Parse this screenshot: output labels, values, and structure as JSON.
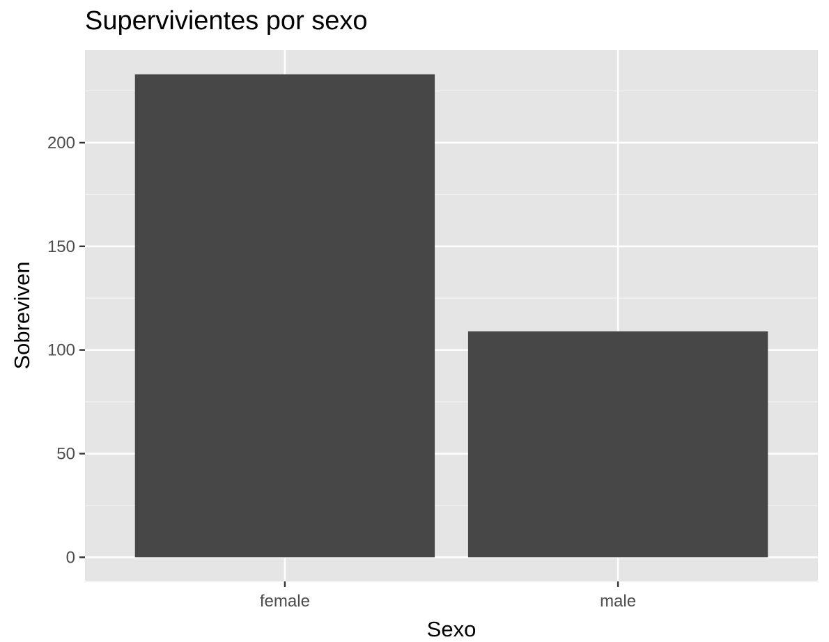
{
  "chart_data": {
    "type": "bar",
    "title": "Supervivientes por sexo",
    "xlabel": "Sexo",
    "ylabel": "Sobreviven",
    "categories": [
      "female",
      "male"
    ],
    "values": [
      233,
      109
    ],
    "ylim": [
      -11.65,
      244.65
    ],
    "yticks": [
      0,
      50,
      100,
      150,
      200
    ],
    "ytick_labels": [
      "0",
      "50",
      "100",
      "150",
      "200"
    ],
    "grid": true,
    "legend": "none",
    "colors": {
      "panel_background": "#e5e5e5",
      "grid_major": "#ffffff",
      "grid_minor": "#f2f2f2",
      "bar_fill": "#474747",
      "tick_color": "#333333",
      "tick_label_color": "#4d4d4d"
    }
  }
}
